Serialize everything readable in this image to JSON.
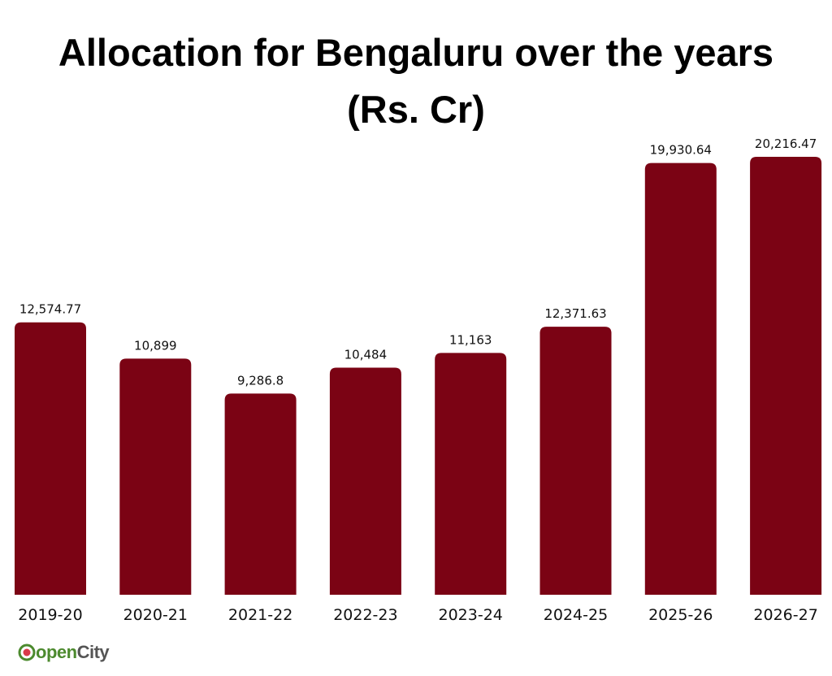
{
  "title_line1": "Allocation for Bengaluru over the years",
  "title_line2": "(Rs. Cr)",
  "chart_data": {
    "type": "bar",
    "title": "Allocation for Bengaluru over the years (Rs. Cr)",
    "xlabel": "",
    "ylabel": "",
    "categories": [
      "2019-20",
      "2020-21",
      "2021-22",
      "2022-23",
      "2023-24",
      "2024-25",
      "2025-26",
      "2026-27"
    ],
    "values": [
      12574.77,
      10899,
      9286.8,
      10484,
      11163,
      12371.63,
      19930.64,
      20216.47
    ],
    "value_labels": [
      "12,574.77",
      "10,899",
      "9,286.8",
      "10,484",
      "11,163",
      "12,371.63",
      "19,930.64",
      "20,216.47"
    ],
    "ylim": [
      0,
      20216.47
    ],
    "grid": false,
    "legend": "none",
    "bar_color": "#7b0314"
  },
  "logo": {
    "part1": "open",
    "part2": "City"
  }
}
